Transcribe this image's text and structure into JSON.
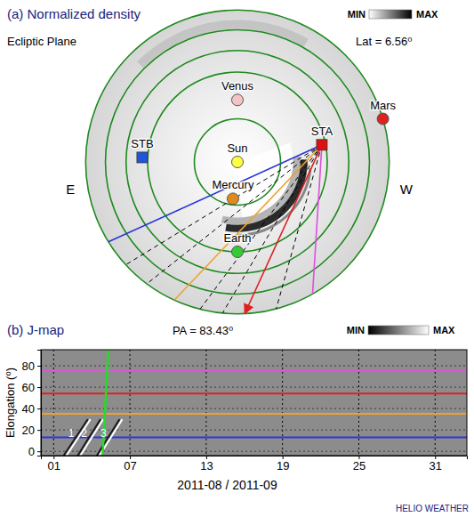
{
  "panel_a": {
    "title": "(a) Normalized density",
    "plane": "Ecliptic Plane",
    "latitude": "Lat = 6.56⁰",
    "colorbar": {
      "min_label": "MIN",
      "max_label": "MAX"
    },
    "directions": {
      "east": "E",
      "west": "W"
    },
    "rings_au": [
      0.48,
      1.0,
      1.24,
      1.47,
      1.69
    ],
    "observer": "STA",
    "dashed_elongations": [
      20,
      27,
      42,
      48,
      63
    ],
    "bodies": [
      {
        "name": "Sun",
        "x": 0,
        "y": 0,
        "color": "#ffff40",
        "marker": "circle"
      },
      {
        "name": "Venus",
        "x": 0,
        "y": 0.69,
        "color": "#f4c4c4",
        "marker": "circle"
      },
      {
        "name": "Mercury",
        "x": -0.05,
        "y": -0.41,
        "color": "#e08a1e",
        "marker": "circle"
      },
      {
        "name": "Earth",
        "x": 0,
        "y": -1,
        "color": "#33cc33",
        "marker": "circle"
      },
      {
        "name": "Mars",
        "x": 1.62,
        "y": 0.48,
        "color": "#dd2222",
        "marker": "circle"
      },
      {
        "name": "STA",
        "x": 0.94,
        "y": 0.19,
        "color": "#dd1111",
        "marker": "square"
      },
      {
        "name": "STB",
        "x": -1.06,
        "y": 0.05,
        "color": "#2255dd",
        "marker": "square"
      }
    ]
  },
  "chart_data": {
    "type": "jmap",
    "title": "(b) J-map",
    "subtitle": "PA = 83.43⁰",
    "colorbar": {
      "min_label": "MIN",
      "max_label": "MAX"
    },
    "x_label": "2011-08 / 2011-09",
    "y_label": "Elongation (⁰)",
    "xlim": [
      0,
      33.5
    ],
    "xticks": [
      {
        "value": 1,
        "label": "01"
      },
      {
        "value": 7,
        "label": "07"
      },
      {
        "value": 13,
        "label": "13"
      },
      {
        "value": 19,
        "label": "19"
      },
      {
        "value": 25,
        "label": "25"
      },
      {
        "value": 31,
        "label": "31"
      }
    ],
    "ylim": [
      -4,
      95
    ],
    "yticks": [
      0,
      20,
      40,
      60,
      80
    ],
    "grid": true,
    "elongation_lines": [
      {
        "elongation": 13,
        "color": "#2a35d8",
        "marker": "none"
      },
      {
        "elongation": 35,
        "color": "#f0a030",
        "marker": "none"
      },
      {
        "elongation": 54,
        "color": "#e02020",
        "marker": "arrow"
      },
      {
        "elongation": 75,
        "color": "#e050e0",
        "marker": "none"
      }
    ],
    "tracks": [
      {
        "label": "1",
        "x": [
          2.0,
          3.9
        ],
        "y": [
          -4,
          30
        ]
      },
      {
        "label": "2",
        "x": [
          3.1,
          4.9
        ],
        "y": [
          -4,
          30
        ]
      },
      {
        "label": "3",
        "x": [
          4.6,
          6.4
        ],
        "y": [
          -4,
          30
        ]
      }
    ],
    "green_line": {
      "x": [
        4.85,
        5.3
      ],
      "color": "#22dd22"
    }
  },
  "credit": "HELIO WEATHER"
}
